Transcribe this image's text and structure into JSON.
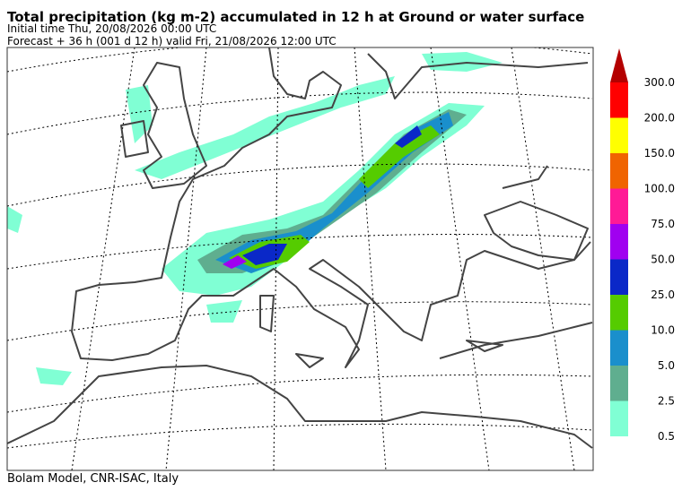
{
  "header": {
    "title": "Total precipitation (kg m-2) accumulated in  12 h at Ground or water surface",
    "initial_time": "Initial time  Thu, 20/08/2026  00:00 UTC",
    "forecast": "Forecast  +  36 h  (001 d 12 h)  valid Fri, 21/08/2026 12:00 UTC"
  },
  "colorbar": {
    "labels": [
      "0.5",
      "2.5",
      "5.0",
      "10.0",
      "25.0",
      "50.0",
      "75.0",
      "100.0",
      "150.0",
      "200.0",
      "300.0"
    ],
    "colors": [
      "#80ffd4",
      "#5fae8f",
      "#1a8fcc",
      "#55cc00",
      "#0a28c8",
      "#a000f0",
      "#ff1a96",
      "#f06400",
      "#ffff00",
      "#ff0000",
      "#b40000"
    ]
  },
  "footer": "Bolam Model, CNR-ISAC, Italy"
}
